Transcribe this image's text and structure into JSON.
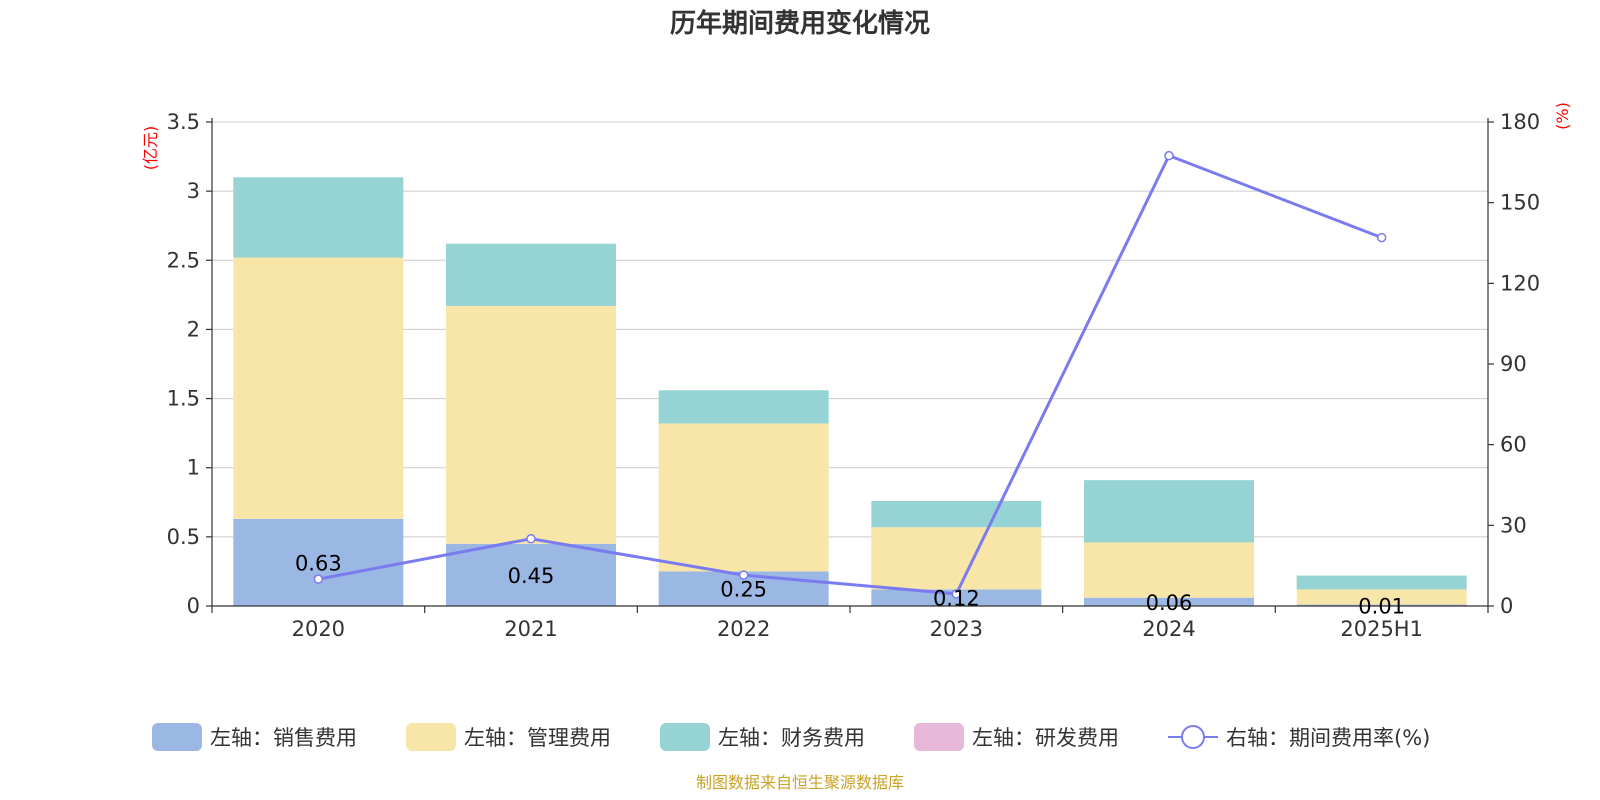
{
  "colors": {
    "sales": "#9bb7e3",
    "admin": "#f8e6a9",
    "finance": "#96d3d4",
    "rd": "#e8b8da",
    "rate": "#7b7bf0",
    "grid": "#cccccc",
    "axis": "#333333",
    "unit": "#ff0000",
    "source": "#c9a227"
  },
  "chart_data": {
    "type": "bar",
    "title": "历年期间费用变化情况",
    "categories": [
      "2020",
      "2021",
      "2022",
      "2023",
      "2024",
      "2025H1"
    ],
    "left_axis": {
      "unit": "(亿元)",
      "ylim": [
        0,
        3.5
      ],
      "ticks": [
        "0",
        "0.5",
        "1",
        "1.5",
        "2",
        "2.5",
        "3",
        "3.5"
      ]
    },
    "right_axis": {
      "unit": "(%)",
      "ylim": [
        0,
        180
      ],
      "ticks": [
        "0",
        "30",
        "60",
        "90",
        "120",
        "150",
        "180"
      ]
    },
    "series": [
      {
        "name": "左轴：销售费用",
        "key": "sales",
        "stack": true,
        "values": [
          0.63,
          0.45,
          0.25,
          0.12,
          0.06,
          0.01
        ],
        "labels": [
          "0.63",
          "0.45",
          "0.25",
          "0.12",
          "0.06",
          "0.01"
        ]
      },
      {
        "name": "左轴：管理费用",
        "key": "admin",
        "stack": true,
        "values": [
          1.89,
          1.72,
          1.07,
          0.45,
          0.4,
          0.11
        ]
      },
      {
        "name": "左轴：财务费用",
        "key": "finance",
        "stack": true,
        "values": [
          0.58,
          0.45,
          0.24,
          0.19,
          0.45,
          0.1
        ]
      },
      {
        "name": "左轴：研发费用",
        "key": "rd",
        "stack": true,
        "values": [
          0,
          0,
          0,
          0,
          0,
          0
        ]
      },
      {
        "name": "右轴：期间费用率(%)",
        "key": "rate",
        "type": "line",
        "axis": "right",
        "values": [
          10,
          25,
          11.5,
          4.5,
          167.5,
          137
        ]
      }
    ],
    "legend_position": "bottom",
    "source": "制图数据来自恒生聚源数据库"
  }
}
